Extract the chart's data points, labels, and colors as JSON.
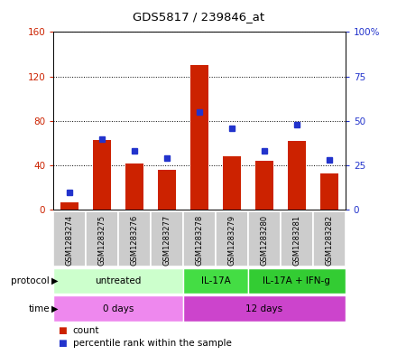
{
  "title": "GDS5817 / 239846_at",
  "samples": [
    "GSM1283274",
    "GSM1283275",
    "GSM1283276",
    "GSM1283277",
    "GSM1283278",
    "GSM1283279",
    "GSM1283280",
    "GSM1283281",
    "GSM1283282"
  ],
  "counts": [
    7,
    63,
    42,
    36,
    130,
    48,
    44,
    62,
    33
  ],
  "percentiles": [
    10,
    40,
    33,
    29,
    55,
    46,
    33,
    48,
    28
  ],
  "ylim_left": [
    0,
    160
  ],
  "ylim_right": [
    0,
    100
  ],
  "yticks_left": [
    0,
    40,
    80,
    120,
    160
  ],
  "yticks_right": [
    0,
    25,
    50,
    75,
    100
  ],
  "ytick_labels_right": [
    "0",
    "25",
    "50",
    "75",
    "100%"
  ],
  "protocol_groups": [
    {
      "label": "untreated",
      "start": 0,
      "end": 4,
      "color": "#ccffcc"
    },
    {
      "label": "IL-17A",
      "start": 4,
      "end": 6,
      "color": "#44dd44"
    },
    {
      "label": "IL-17A + IFN-g",
      "start": 6,
      "end": 9,
      "color": "#33cc33"
    }
  ],
  "time_groups": [
    {
      "label": "0 days",
      "start": 0,
      "end": 4,
      "color": "#ee88ee"
    },
    {
      "label": "12 days",
      "start": 4,
      "end": 9,
      "color": "#cc44cc"
    }
  ],
  "bar_color": "#cc2200",
  "dot_color": "#2233cc",
  "left_axis_color": "#cc2200",
  "right_axis_color": "#2233cc",
  "sample_box_color": "#cccccc",
  "sample_box_edge": "#aaaaaa",
  "plot_bg": "#ffffff",
  "grid_linestyle": "dotted",
  "bar_width": 0.55
}
